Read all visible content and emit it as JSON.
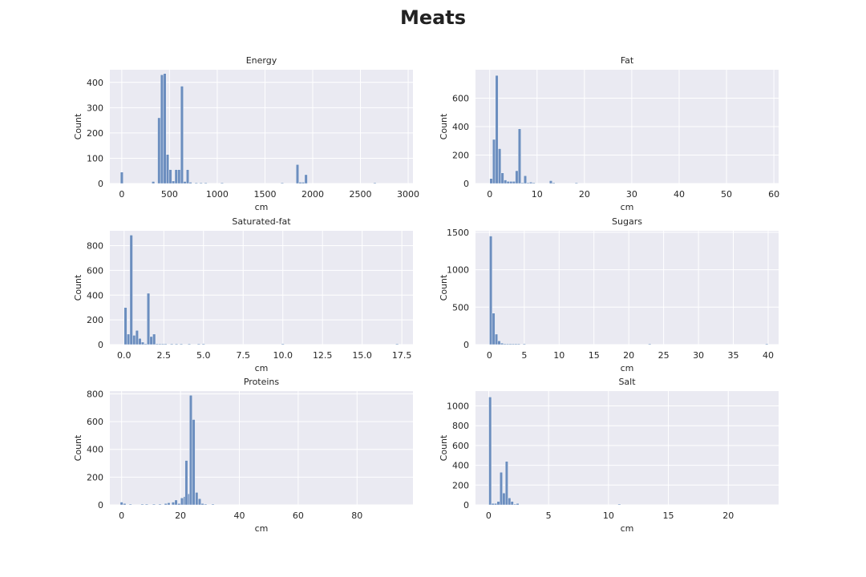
{
  "figure": {
    "title": "Meats"
  },
  "style": {
    "bar_color": "#6c8ebf",
    "bar_edge": "#ffffff",
    "panel_bg": "#eaeaf2",
    "grid_color": "#ffffff",
    "text_color": "#262626"
  },
  "chart_data": [
    {
      "type": "bar",
      "title": "Energy",
      "xlabel": "cm",
      "ylabel": "Count",
      "xlim": [
        -125,
        3050
      ],
      "ylim": [
        0,
        450
      ],
      "xticks": [
        0,
        500,
        1000,
        1500,
        2000,
        2500,
        3000
      ],
      "xtick_labels": [
        "0",
        "500",
        "1000",
        "1500",
        "2000",
        "2500",
        "3000"
      ],
      "yticks": [
        0,
        100,
        200,
        300,
        400
      ],
      "ytick_labels": [
        "0",
        "100",
        "200",
        "300",
        "400"
      ],
      "bin_width": 29.7,
      "bins": [
        [
          0,
          45
        ],
        [
          330,
          8
        ],
        [
          390,
          260
        ],
        [
          420,
          430
        ],
        [
          450,
          435
        ],
        [
          480,
          115
        ],
        [
          510,
          55
        ],
        [
          540,
          10
        ],
        [
          570,
          55
        ],
        [
          600,
          55
        ],
        [
          630,
          385
        ],
        [
          660,
          8
        ],
        [
          690,
          55
        ],
        [
          720,
          5
        ],
        [
          780,
          3
        ],
        [
          830,
          3
        ],
        [
          880,
          2
        ],
        [
          1050,
          2
        ],
        [
          1680,
          2
        ],
        [
          1840,
          75
        ],
        [
          1870,
          5
        ],
        [
          1900,
          5
        ],
        [
          1930,
          35
        ],
        [
          2650,
          2
        ]
      ]
    },
    {
      "type": "bar",
      "title": "Fat",
      "xlabel": "cm",
      "ylabel": "Count",
      "xlim": [
        -3,
        61
      ],
      "ylim": [
        0,
        800
      ],
      "xticks": [
        0,
        10,
        20,
        30,
        40,
        50,
        60
      ],
      "xtick_labels": [
        "0",
        "10",
        "20",
        "30",
        "40",
        "50",
        "60"
      ],
      "yticks": [
        0,
        200,
        400,
        600
      ],
      "ytick_labels": [
        "0",
        "200",
        "400",
        "600"
      ],
      "bin_width": 0.6,
      "bins": [
        [
          0.3,
          35
        ],
        [
          0.9,
          310
        ],
        [
          1.5,
          760
        ],
        [
          2.1,
          245
        ],
        [
          2.7,
          75
        ],
        [
          3.3,
          25
        ],
        [
          3.9,
          15
        ],
        [
          4.5,
          15
        ],
        [
          5.1,
          15
        ],
        [
          5.7,
          90
        ],
        [
          6.3,
          385
        ],
        [
          6.9,
          5
        ],
        [
          7.5,
          55
        ],
        [
          8.1,
          5
        ],
        [
          8.7,
          10
        ],
        [
          9.3,
          2
        ],
        [
          12.9,
          20
        ],
        [
          13.5,
          2
        ],
        [
          18.3,
          5
        ]
      ]
    },
    {
      "type": "bar",
      "title": "Saturated-fat",
      "xlabel": "cm",
      "ylabel": "Count",
      "xlim": [
        -0.9,
        18.2
      ],
      "ylim": [
        0,
        920
      ],
      "xticks": [
        0,
        2.5,
        5,
        7.5,
        10,
        12.5,
        15,
        17.5
      ],
      "xtick_labels": [
        "0.0",
        "2.5",
        "5.0",
        "7.5",
        "10.0",
        "12.5",
        "15.0",
        "17.5"
      ],
      "yticks": [
        0,
        200,
        400,
        600,
        800
      ],
      "ytick_labels": [
        "0",
        "200",
        "400",
        "600",
        "800"
      ],
      "bin_width": 0.18,
      "bins": [
        [
          0.09,
          300
        ],
        [
          0.27,
          85
        ],
        [
          0.45,
          885
        ],
        [
          0.63,
          75
        ],
        [
          0.81,
          115
        ],
        [
          0.99,
          50
        ],
        [
          1.17,
          20
        ],
        [
          1.35,
          5
        ],
        [
          1.53,
          415
        ],
        [
          1.71,
          65
        ],
        [
          1.89,
          85
        ],
        [
          2.07,
          5
        ],
        [
          2.25,
          5
        ],
        [
          2.43,
          5
        ],
        [
          2.61,
          3
        ],
        [
          3.0,
          3
        ],
        [
          3.3,
          3
        ],
        [
          3.6,
          3
        ],
        [
          4.1,
          3
        ],
        [
          4.7,
          3
        ],
        [
          5.0,
          3
        ],
        [
          10.0,
          2
        ],
        [
          17.2,
          2
        ]
      ]
    },
    {
      "type": "bar",
      "title": "Sugars",
      "xlabel": "cm",
      "ylabel": "Count",
      "xlim": [
        -2,
        41.5
      ],
      "ylim": [
        0,
        1520
      ],
      "xticks": [
        0,
        5,
        10,
        15,
        20,
        25,
        30,
        35,
        40
      ],
      "xtick_labels": [
        "0",
        "5",
        "10",
        "15",
        "20",
        "25",
        "30",
        "35",
        "40"
      ],
      "yticks": [
        0,
        500,
        1000,
        1500
      ],
      "ytick_labels": [
        "0",
        "500",
        "1000",
        "1500"
      ],
      "bin_width": 0.4,
      "bins": [
        [
          0.2,
          1450
        ],
        [
          0.6,
          420
        ],
        [
          1.0,
          140
        ],
        [
          1.4,
          50
        ],
        [
          1.8,
          20
        ],
        [
          2.2,
          10
        ],
        [
          2.6,
          5
        ],
        [
          3.0,
          5
        ],
        [
          3.4,
          3
        ],
        [
          3.8,
          3
        ],
        [
          4.2,
          3
        ],
        [
          5.0,
          8
        ],
        [
          23.0,
          5
        ],
        [
          39.8,
          5
        ]
      ]
    },
    {
      "type": "bar",
      "title": "Proteins",
      "xlabel": "cm",
      "ylabel": "Count",
      "xlim": [
        -4,
        99
      ],
      "ylim": [
        0,
        820
      ],
      "xticks": [
        0,
        20,
        40,
        60,
        80
      ],
      "xtick_labels": [
        "0",
        "20",
        "40",
        "60",
        "80"
      ],
      "yticks": [
        0,
        200,
        400,
        600,
        800
      ],
      "ytick_labels": [
        "0",
        "200",
        "400",
        "600",
        "800"
      ],
      "bin_width": 0.95,
      "bins": [
        [
          0.0,
          20
        ],
        [
          1.0,
          10
        ],
        [
          3.0,
          5
        ],
        [
          7.0,
          5
        ],
        [
          8.5,
          5
        ],
        [
          11.0,
          3
        ],
        [
          13.0,
          5
        ],
        [
          15.0,
          10
        ],
        [
          16.0,
          15
        ],
        [
          17.5,
          20
        ],
        [
          18.5,
          35
        ],
        [
          19.5,
          10
        ],
        [
          20.5,
          50
        ],
        [
          21.5,
          60
        ],
        [
          22.0,
          320
        ],
        [
          23.0,
          80
        ],
        [
          23.5,
          790
        ],
        [
          24.5,
          615
        ],
        [
          25.5,
          90
        ],
        [
          26.5,
          45
        ],
        [
          27.5,
          10
        ],
        [
          28.5,
          5
        ],
        [
          31.0,
          3
        ]
      ]
    },
    {
      "type": "bar",
      "title": "Salt",
      "xlabel": "cm",
      "ylabel": "Count",
      "xlim": [
        -1.1,
        24.2
      ],
      "ylim": [
        0,
        1150
      ],
      "xticks": [
        0,
        5,
        10,
        15,
        20
      ],
      "xtick_labels": [
        "0",
        "5",
        "10",
        "15",
        "20"
      ],
      "yticks": [
        0,
        200,
        400,
        600,
        800,
        1000
      ],
      "ytick_labels": [
        "0",
        "200",
        "400",
        "600",
        "800",
        "1000"
      ],
      "bin_width": 0.23,
      "bins": [
        [
          0.12,
          1090
        ],
        [
          0.35,
          15
        ],
        [
          0.58,
          15
        ],
        [
          0.81,
          35
        ],
        [
          1.04,
          330
        ],
        [
          1.27,
          120
        ],
        [
          1.5,
          440
        ],
        [
          1.73,
          70
        ],
        [
          1.96,
          35
        ],
        [
          2.19,
          5
        ],
        [
          2.42,
          15
        ],
        [
          10.9,
          8
        ]
      ]
    }
  ]
}
